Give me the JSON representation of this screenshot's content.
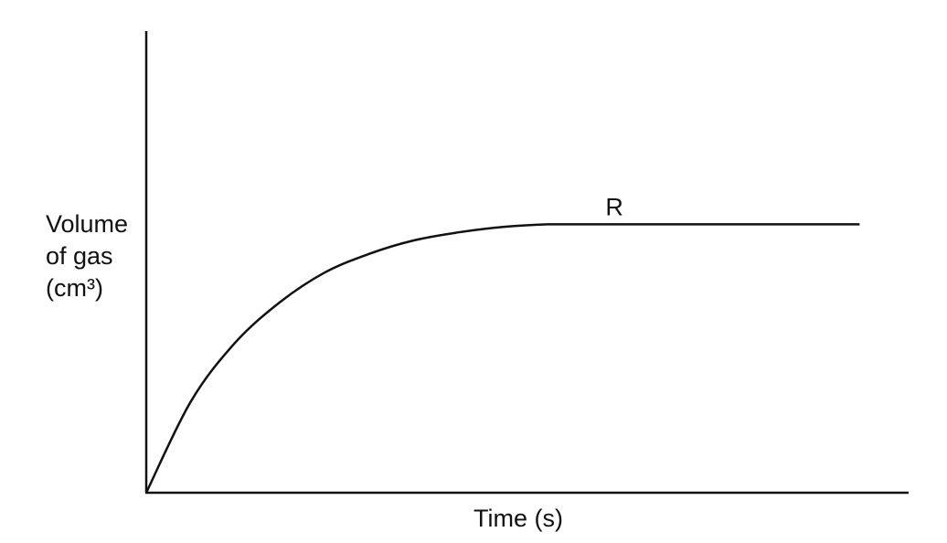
{
  "chart_data": {
    "type": "line",
    "title": "",
    "xlabel": "Time (s)",
    "ylabel_lines": [
      "Volume",
      "of gas",
      "(cm³)"
    ],
    "x_ticks": [],
    "y_ticks": [],
    "grid": false,
    "series": [
      {
        "x": [
          0,
          0.1,
          0.2,
          0.3,
          0.4,
          0.5,
          0.6,
          0.7,
          0.8,
          0.9,
          1.0,
          1.15,
          1.3,
          1.45,
          1.6
        ],
        "y": [
          0,
          0.34,
          0.56,
          0.71,
          0.82,
          0.89,
          0.94,
          0.97,
          0.99,
          1.0,
          1.0,
          1.0,
          1.0,
          1.0,
          1.0
        ]
      }
    ],
    "xlim": [
      0,
      1.71
    ],
    "ylim": [
      0,
      1.72
    ],
    "annotations": [
      {
        "text": "R",
        "x": 1.05,
        "y": 1.0
      }
    ]
  }
}
